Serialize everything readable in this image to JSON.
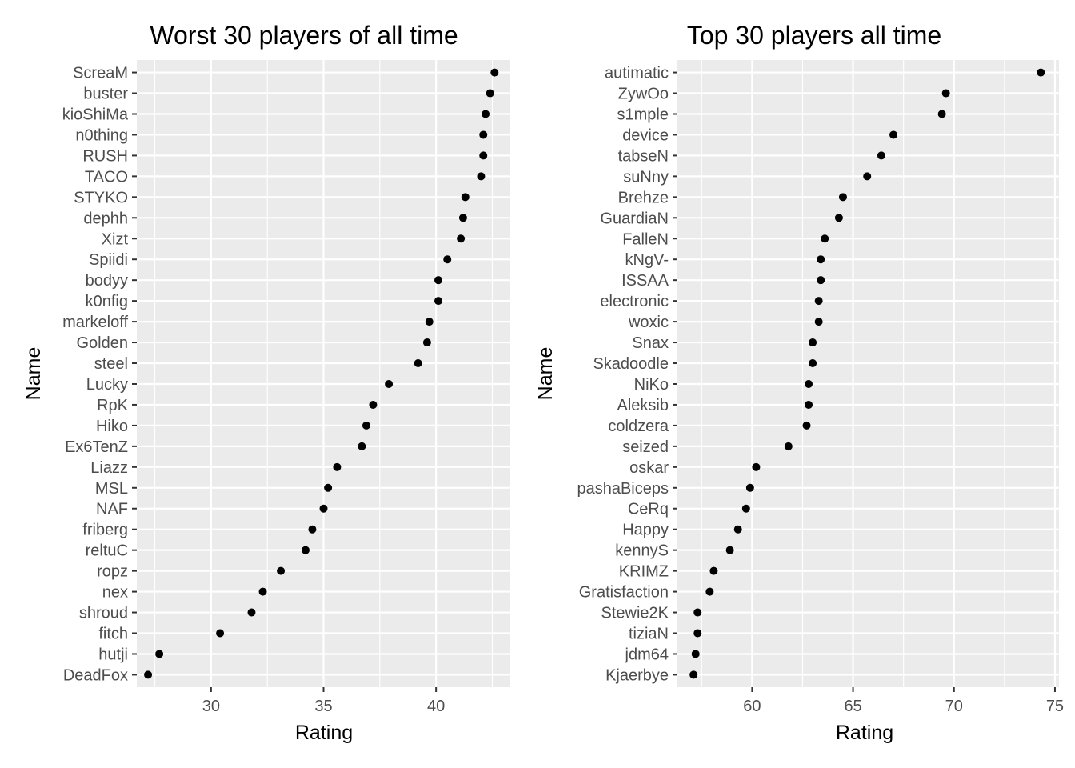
{
  "chart_data": [
    {
      "type": "scatter",
      "title": "Worst 30 players of all time",
      "xlabel": "Rating",
      "ylabel": "Name",
      "xlim": [
        26.7,
        43.3
      ],
      "x_ticks": [
        30,
        35,
        40
      ],
      "x_minor_ticks": [
        27.5,
        32.5,
        37.5,
        42.5
      ],
      "grid": true,
      "points": [
        {
          "name": "ScreaM",
          "rating": 42.6
        },
        {
          "name": "buster",
          "rating": 42.4
        },
        {
          "name": "kioShiMa",
          "rating": 42.2
        },
        {
          "name": "n0thing",
          "rating": 42.1
        },
        {
          "name": "RUSH",
          "rating": 42.1
        },
        {
          "name": "TACO",
          "rating": 42.0
        },
        {
          "name": "STYKO",
          "rating": 41.3
        },
        {
          "name": "dephh",
          "rating": 41.2
        },
        {
          "name": "Xizt",
          "rating": 41.1
        },
        {
          "name": "Spiidi",
          "rating": 40.5
        },
        {
          "name": "bodyy",
          "rating": 40.1
        },
        {
          "name": "k0nfig",
          "rating": 40.1
        },
        {
          "name": "markeloff",
          "rating": 39.7
        },
        {
          "name": "Golden",
          "rating": 39.6
        },
        {
          "name": "steel",
          "rating": 39.2
        },
        {
          "name": "Lucky",
          "rating": 37.9
        },
        {
          "name": "RpK",
          "rating": 37.2
        },
        {
          "name": "Hiko",
          "rating": 36.9
        },
        {
          "name": "Ex6TenZ",
          "rating": 36.7
        },
        {
          "name": "Liazz",
          "rating": 35.6
        },
        {
          "name": "MSL",
          "rating": 35.2
        },
        {
          "name": "NAF",
          "rating": 35.0
        },
        {
          "name": "friberg",
          "rating": 34.5
        },
        {
          "name": "reltuC",
          "rating": 34.2
        },
        {
          "name": "ropz",
          "rating": 33.1
        },
        {
          "name": "nex",
          "rating": 32.3
        },
        {
          "name": "shroud",
          "rating": 31.8
        },
        {
          "name": "fitch",
          "rating": 30.4
        },
        {
          "name": "hutji",
          "rating": 27.7
        },
        {
          "name": "DeadFox",
          "rating": 27.2
        }
      ]
    },
    {
      "type": "scatter",
      "title": "Top 30 players all time",
      "xlabel": "Rating",
      "ylabel": "Name",
      "xlim": [
        56.3,
        75.2
      ],
      "x_ticks": [
        60,
        65,
        70,
        75
      ],
      "x_minor_ticks": [
        57.5,
        62.5,
        67.5,
        72.5
      ],
      "grid": true,
      "points": [
        {
          "name": "autimatic",
          "rating": 74.3
        },
        {
          "name": "ZywOo",
          "rating": 69.6
        },
        {
          "name": "s1mple",
          "rating": 69.4
        },
        {
          "name": "device",
          "rating": 67.0
        },
        {
          "name": "tabseN",
          "rating": 66.4
        },
        {
          "name": "suNny",
          "rating": 65.7
        },
        {
          "name": "Brehze",
          "rating": 64.5
        },
        {
          "name": "GuardiaN",
          "rating": 64.3
        },
        {
          "name": "FalleN",
          "rating": 63.6
        },
        {
          "name": "kNgV-",
          "rating": 63.4
        },
        {
          "name": "ISSAA",
          "rating": 63.4
        },
        {
          "name": "electronic",
          "rating": 63.3
        },
        {
          "name": "woxic",
          "rating": 63.3
        },
        {
          "name": "Snax",
          "rating": 63.0
        },
        {
          "name": "Skadoodle",
          "rating": 63.0
        },
        {
          "name": "NiKo",
          "rating": 62.8
        },
        {
          "name": "Aleksib",
          "rating": 62.8
        },
        {
          "name": "coldzera",
          "rating": 62.7
        },
        {
          "name": "seized",
          "rating": 61.8
        },
        {
          "name": "oskar",
          "rating": 60.2
        },
        {
          "name": "pashaBiceps",
          "rating": 59.9
        },
        {
          "name": "CeRq",
          "rating": 59.7
        },
        {
          "name": "Happy",
          "rating": 59.3
        },
        {
          "name": "kennyS",
          "rating": 58.9
        },
        {
          "name": "KRIMZ",
          "rating": 58.1
        },
        {
          "name": "Gratisfaction",
          "rating": 57.9
        },
        {
          "name": "Stewie2K",
          "rating": 57.3
        },
        {
          "name": "tiziaN",
          "rating": 57.3
        },
        {
          "name": "jdm64",
          "rating": 57.2
        },
        {
          "name": "Kjaerbye",
          "rating": 57.1
        }
      ]
    }
  ]
}
